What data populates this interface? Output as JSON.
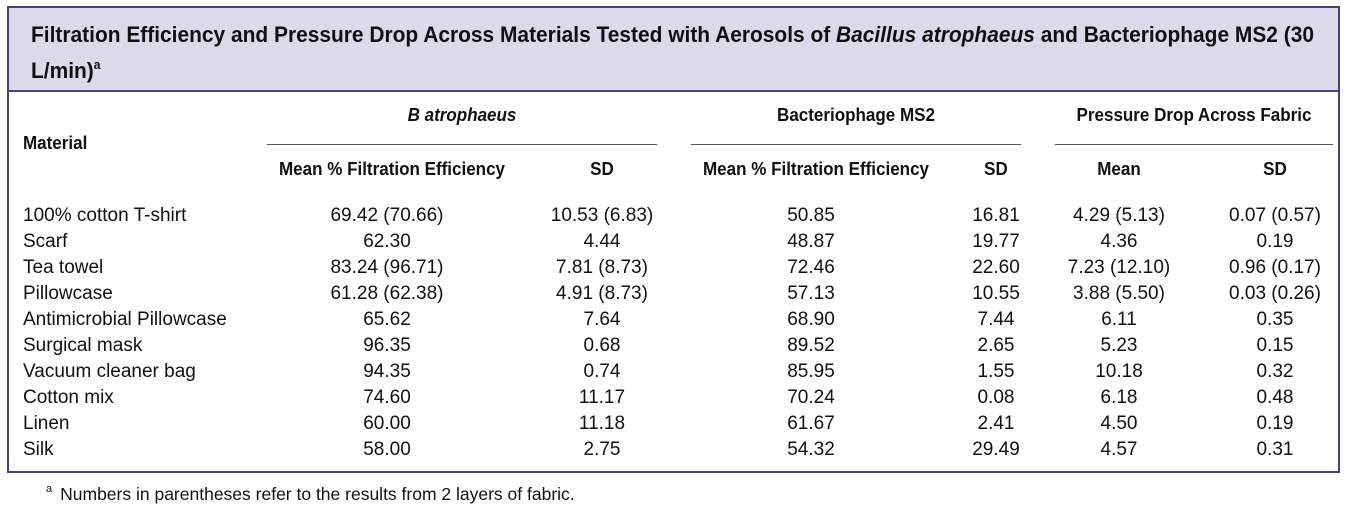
{
  "table": {
    "title_part1": "Filtration Efficiency and Pressure Drop Across Materials Tested with Aerosols of ",
    "title_italic": "Bacillus atrophaeus",
    "title_part2": " and Bacteriophage MS2 (30 L/min)",
    "title_sup": "a",
    "col_material": "Material",
    "group_b": "B atrophaeus",
    "group_ms2": "Bacteriophage MS2",
    "group_pressure": "Pressure Drop Across Fabric",
    "sub_b_mean": "Mean % Filtration Efficiency",
    "sub_b_sd": "SD",
    "sub_ms2_mean": "Mean % Filtration Efficiency",
    "sub_ms2_sd": "SD",
    "sub_p_mean": "Mean",
    "sub_p_sd": "SD",
    "rows": [
      {
        "material": "100% cotton T-shirt",
        "b_mean": "69.42 (70.66)",
        "b_sd": "10.53 (6.83)",
        "ms2_mean": "50.85",
        "ms2_sd": "16.81",
        "p_mean": "4.29 (5.13)",
        "p_sd": "0.07 (0.57)"
      },
      {
        "material": "Scarf",
        "b_mean": "62.30",
        "b_sd": "4.44",
        "ms2_mean": "48.87",
        "ms2_sd": "19.77",
        "p_mean": "4.36",
        "p_sd": "0.19"
      },
      {
        "material": "Tea towel",
        "b_mean": "83.24 (96.71)",
        "b_sd": "7.81 (8.73)",
        "ms2_mean": "72.46",
        "ms2_sd": "22.60",
        "p_mean": "7.23 (12.10)",
        "p_sd": "0.96 (0.17)"
      },
      {
        "material": "Pillowcase",
        "b_mean": "61.28 (62.38)",
        "b_sd": "4.91 (8.73)",
        "ms2_mean": "57.13",
        "ms2_sd": "10.55",
        "p_mean": "3.88 (5.50)",
        "p_sd": "0.03 (0.26)"
      },
      {
        "material": "Antimicrobial Pillowcase",
        "b_mean": "65.62",
        "b_sd": "7.64",
        "ms2_mean": "68.90",
        "ms2_sd": "7.44",
        "p_mean": "6.11",
        "p_sd": "0.35"
      },
      {
        "material": "Surgical mask",
        "b_mean": "96.35",
        "b_sd": "0.68",
        "ms2_mean": "89.52",
        "ms2_sd": "2.65",
        "p_mean": "5.23",
        "p_sd": "0.15"
      },
      {
        "material": "Vacuum cleaner bag",
        "b_mean": "94.35",
        "b_sd": "0.74",
        "ms2_mean": "85.95",
        "ms2_sd": "1.55",
        "p_mean": "10.18",
        "p_sd": "0.32"
      },
      {
        "material": "Cotton mix",
        "b_mean": "74.60",
        "b_sd": "11.17",
        "ms2_mean": "70.24",
        "ms2_sd": "0.08",
        "p_mean": "6.18",
        "p_sd": "0.48"
      },
      {
        "material": "Linen",
        "b_mean": "60.00",
        "b_sd": "11.18",
        "ms2_mean": "61.67",
        "ms2_sd": "2.41",
        "p_mean": "4.50",
        "p_sd": "0.19"
      },
      {
        "material": "Silk",
        "b_mean": "58.00",
        "b_sd": "2.75",
        "ms2_mean": "54.32",
        "ms2_sd": "29.49",
        "p_mean": "4.57",
        "p_sd": "0.31"
      }
    ],
    "footnote_sup": "a",
    "footnote": "Numbers in parentheses refer to the results from 2 layers of fabric."
  },
  "colors": {
    "border": "#4e3e7a",
    "title_band": "#dcdaea"
  }
}
